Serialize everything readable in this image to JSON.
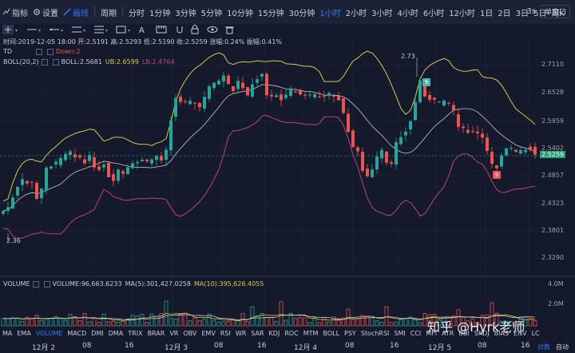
{
  "toolbar": {
    "indicators_label": "指标",
    "settings_label": "设置",
    "draw_label": "画线",
    "period_label": "周期",
    "periods": [
      "分时",
      "1分钟",
      "3分钟",
      "5分钟",
      "10分钟",
      "15分钟",
      "30分钟",
      "1小时",
      "2小时",
      "3小时",
      "4小时",
      "6小时",
      "12小时",
      "1日",
      "2日",
      "3日",
      "5日",
      "周K"
    ],
    "active_period": "1小时",
    "interval_3s": "3s",
    "chart_mode": "单窗口"
  },
  "info_line": "时间:2019-12-05 18:00  开:2.5191  高:2.5293  低:2.5190  收:2.5259  涨幅:0.24%  振幅:0.41%",
  "indicators": {
    "td": {
      "name": "TD",
      "down": "Down:2"
    },
    "boll": {
      "name": "BOLL(20,2)",
      "boll": "BOLL:2.5681",
      "ub": "UB:2.6599",
      "lb": "LB:2.4764"
    },
    "volume": {
      "name": "VOLUME",
      "volume": "VOLUME:96,663.6233",
      "ma5": "MA(5):301,427.0258",
      "ma10": "MA(10):395,626.4055"
    }
  },
  "price_axis": [
    "2.7110",
    "2.6528",
    "2.5959",
    "2.5402",
    "2.4857",
    "2.4323",
    "2.3801",
    "2.3290"
  ],
  "last_price": "2.5259",
  "annotations": {
    "high": "2.73",
    "low": "2.36",
    "tag_9_top": "9",
    "tag_9_bottom": "9"
  },
  "volume_axis": [
    "4.0M",
    "2.0M"
  ],
  "indicator_tabs": [
    "MA",
    "EMA",
    "VOLUME",
    "MACD",
    "DMI",
    "DMA",
    "TRIX",
    "BRAR",
    "VR",
    "OBV",
    "EMV",
    "RSI",
    "WR",
    "SAR",
    "KDJ",
    "ROC",
    "MTM",
    "BOLL",
    "PSY",
    "StochRSI",
    "SMI",
    "CCI",
    "MFI",
    "ATR",
    "BBI",
    "SKDJ",
    "BIAS",
    "ENV",
    "LC"
  ],
  "active_indicator_tab": "VOLUME",
  "time_axis": [
    "12月 2",
    "08",
    "16",
    "12月 3",
    "08",
    "16",
    "12月 4",
    "08",
    "16",
    "12月 5",
    "08",
    "16"
  ],
  "bottom_right": {
    "log": "对数",
    "auto": "自动"
  },
  "watermark": "知乎 @Hyrk老师",
  "colors": {
    "up": "#26a69a",
    "down": "#ef5350",
    "ub": "#d7c94a",
    "mid": "#c8c8c8",
    "lb": "#c0407f",
    "accent": "#2e7bff"
  }
}
